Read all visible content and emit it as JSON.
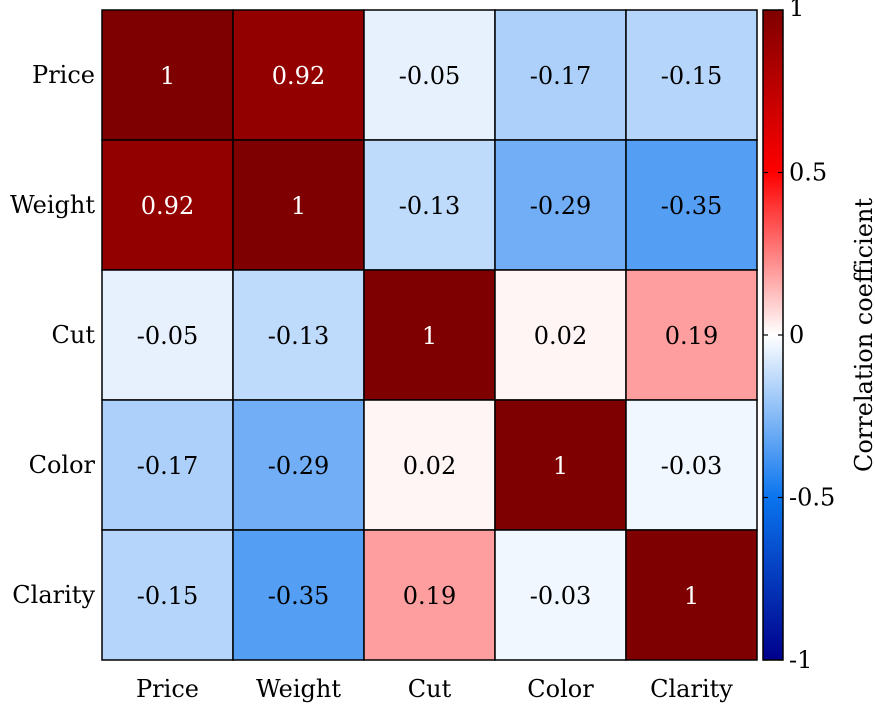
{
  "chart_data": {
    "type": "heatmap",
    "rows": [
      "Price",
      "Weight",
      "Cut",
      "Color",
      "Clarity"
    ],
    "columns": [
      "Price",
      "Weight",
      "Cut",
      "Color",
      "Clarity"
    ],
    "values": [
      [
        1,
        0.92,
        -0.05,
        -0.17,
        -0.15
      ],
      [
        0.92,
        1,
        -0.13,
        -0.29,
        -0.35
      ],
      [
        -0.05,
        -0.13,
        1,
        0.02,
        0.19
      ],
      [
        -0.17,
        -0.29,
        0.02,
        1,
        -0.03
      ],
      [
        -0.15,
        -0.35,
        0.19,
        -0.03,
        1
      ]
    ],
    "labels": [
      [
        "1",
        "0.92",
        "-0.05",
        "-0.17",
        "-0.15"
      ],
      [
        "0.92",
        "1",
        "-0.13",
        "-0.29",
        "-0.35"
      ],
      [
        "-0.05",
        "-0.13",
        "1",
        "0.02",
        "0.19"
      ],
      [
        "-0.17",
        "-0.29",
        "0.02",
        "1",
        "-0.03"
      ],
      [
        "-0.15",
        "-0.35",
        "0.19",
        "-0.03",
        "1"
      ]
    ],
    "colorbar": {
      "label": "Correlation coefficient",
      "range": [
        -1,
        1
      ],
      "ticks": [
        1,
        0.5,
        0,
        -0.5,
        -1
      ],
      "tick_labels": [
        "1",
        "0.5",
        "0",
        "-0.5",
        "-1"
      ],
      "colors": {
        "low": "#00008b",
        "mid_low": "#0a74ee",
        "mid": "#ffffff",
        "mid_high": "#ff0000",
        "high": "#7f0000"
      }
    }
  }
}
